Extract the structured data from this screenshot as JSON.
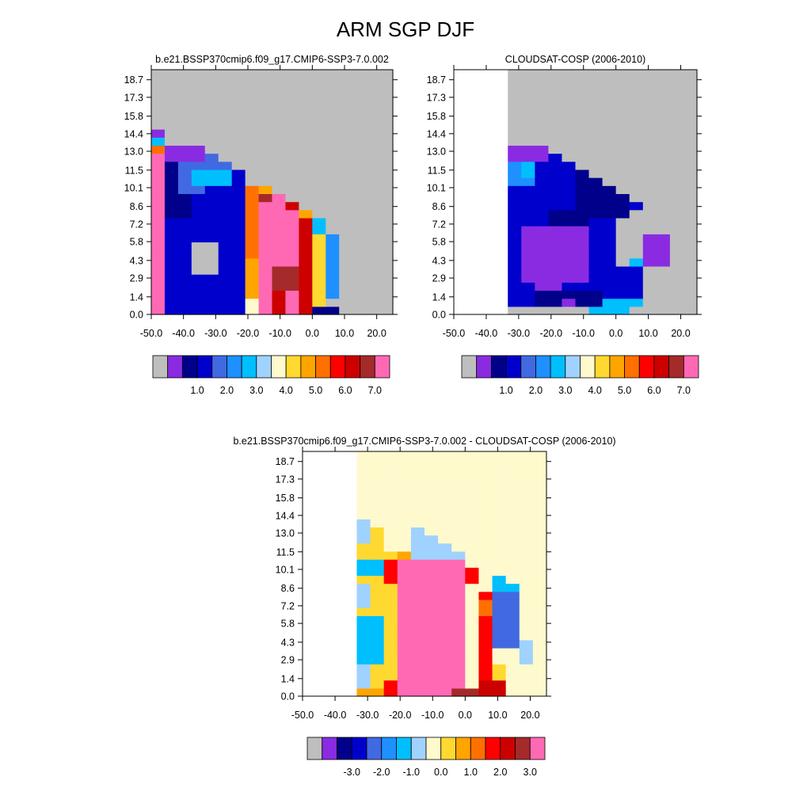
{
  "title": "ARM SGP DJF",
  "chart_data": [
    {
      "type": "heatmap",
      "title": "b.e21.BSSP370cmip6.f09_g17.CMIP6-SSP3-7.0.002",
      "xlim": [
        -50,
        25
      ],
      "ylim": [
        0,
        19.5
      ],
      "x_ticks": [
        "-50.0",
        "-40.0",
        "-30.0",
        "-20.0",
        "-10.0",
        "0.0",
        "10.0",
        "20.0"
      ],
      "y_ticks": [
        "0.0",
        "1.4",
        "2.9",
        "4.3",
        "5.8",
        "7.2",
        "8.6",
        "10.1",
        "11.5",
        "13.0",
        "14.4",
        "15.8",
        "17.3",
        "18.7"
      ],
      "colorbar": {
        "colors": [
          "#bebebe",
          "#8a2be2",
          "#00008b",
          "#0000cd",
          "#4169e1",
          "#1e90ff",
          "#00bfff",
          "#a0d2ff",
          "#fffacd",
          "#ffd930",
          "#ffa500",
          "#ff7000",
          "#ff0000",
          "#cd0000",
          "#a52a2a",
          "#ff69b4"
        ],
        "labels": [
          "1.0",
          "2.0",
          "3.0",
          "4.0",
          "5.0",
          "6.0",
          "7.0"
        ]
      }
    },
    {
      "type": "heatmap",
      "title": "CLOUDSAT-COSP (2006-2010)",
      "xlim": [
        -50,
        25
      ],
      "ylim": [
        0,
        19.5
      ],
      "x_ticks": [
        "-50.0",
        "-40.0",
        "-30.0",
        "-20.0",
        "-10.0",
        "0.0",
        "10.0",
        "20.0"
      ],
      "y_ticks": [
        "0.0",
        "1.4",
        "2.9",
        "4.3",
        "5.8",
        "7.2",
        "8.6",
        "10.1",
        "11.5",
        "13.0",
        "14.4",
        "15.8",
        "17.3",
        "18.7"
      ],
      "colorbar": {
        "colors": [
          "#bebebe",
          "#8a2be2",
          "#00008b",
          "#0000cd",
          "#4169e1",
          "#1e90ff",
          "#00bfff",
          "#a0d2ff",
          "#fffacd",
          "#ffd930",
          "#ffa500",
          "#ff7000",
          "#ff0000",
          "#cd0000",
          "#a52a2a",
          "#ff69b4"
        ],
        "labels": [
          "1.0",
          "2.0",
          "3.0",
          "4.0",
          "5.0",
          "6.0",
          "7.0"
        ]
      }
    },
    {
      "type": "heatmap",
      "title": "b.e21.BSSP370cmip6.f09_g17.CMIP6-SSP3-7.0.002 - CLOUDSAT-COSP (2006-2010)",
      "xlim": [
        -50,
        25
      ],
      "ylim": [
        0,
        19.5
      ],
      "x_ticks": [
        "-50.0",
        "-40.0",
        "-30.0",
        "-20.0",
        "-10.0",
        "0.0",
        "10.0",
        "20.0"
      ],
      "y_ticks": [
        "0.0",
        "1.4",
        "2.9",
        "4.3",
        "5.8",
        "7.2",
        "8.6",
        "10.1",
        "11.5",
        "13.0",
        "14.4",
        "15.8",
        "17.3",
        "18.7"
      ],
      "colorbar": {
        "colors": [
          "#bebebe",
          "#8a2be2",
          "#00008b",
          "#0000cd",
          "#4169e1",
          "#1e90ff",
          "#00bfff",
          "#a0d2ff",
          "#fffacd",
          "#ffd930",
          "#ffa500",
          "#ff7000",
          "#ff0000",
          "#cd0000",
          "#a52a2a",
          "#ff69b4"
        ],
        "labels": [
          "-3.0",
          "-2.0",
          "-1.0",
          "0.0",
          "1.0",
          "2.0",
          "3.0"
        ]
      }
    }
  ]
}
